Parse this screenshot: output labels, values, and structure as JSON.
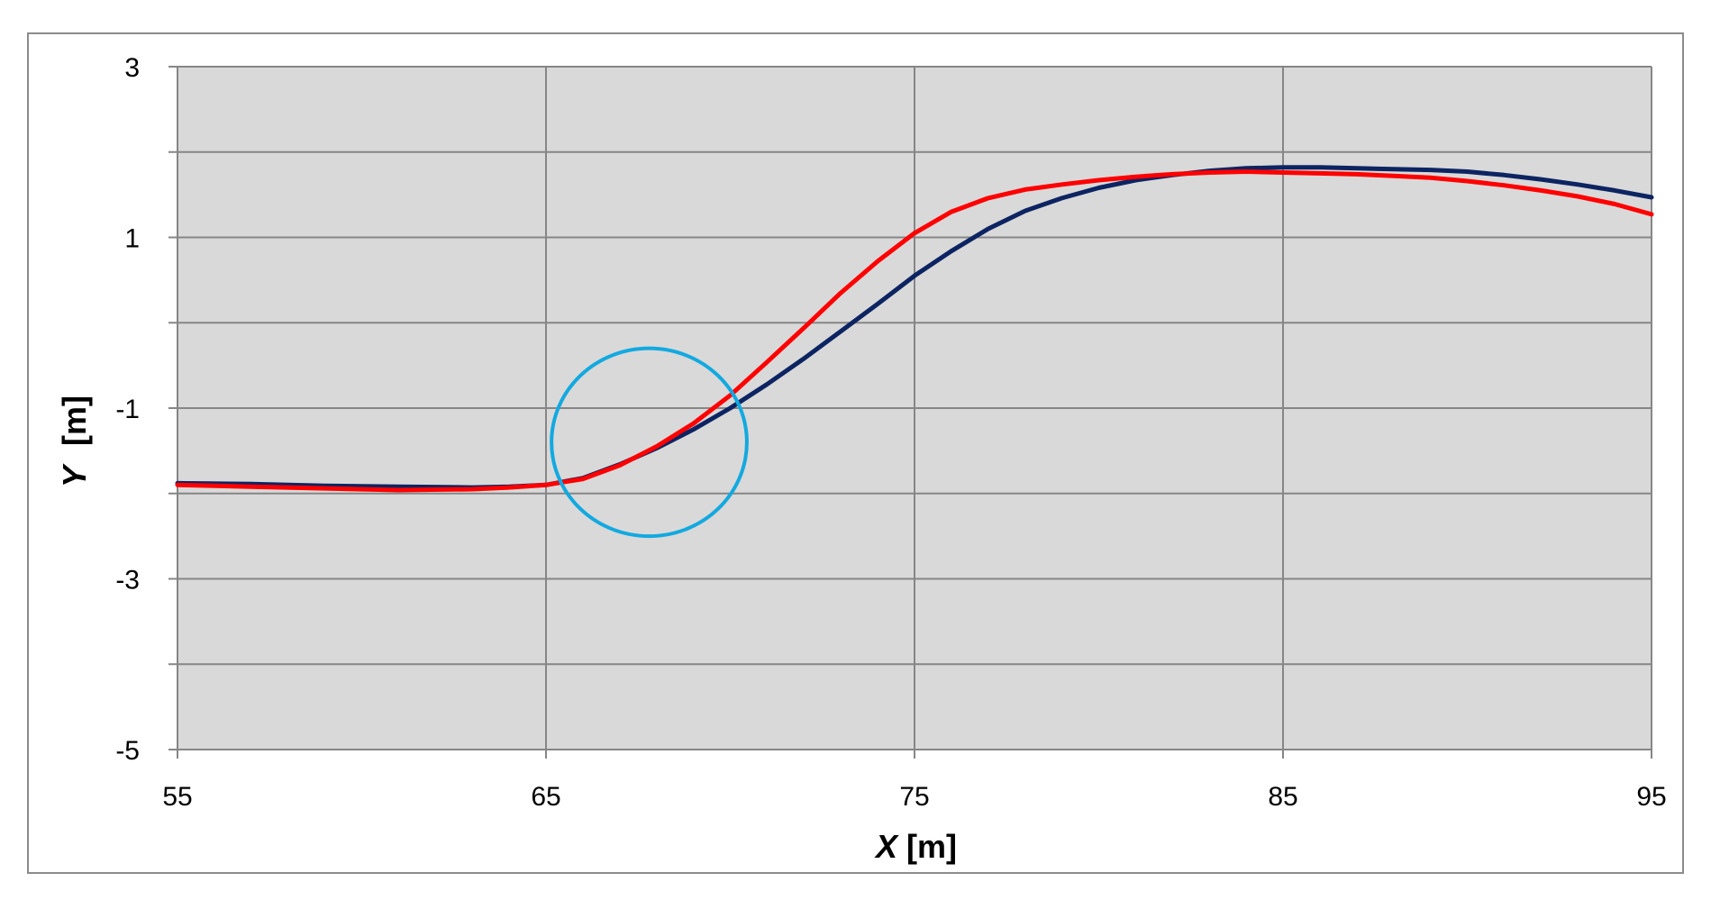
{
  "chart_data": {
    "type": "line",
    "xlabel": {
      "var": "X",
      "unit": "[m]"
    },
    "ylabel": {
      "var": "Y",
      "unit": "[m]"
    },
    "xlim": [
      55,
      95
    ],
    "ylim": [
      -5,
      3
    ],
    "x_ticks": [
      55,
      65,
      75,
      85,
      95
    ],
    "y_ticks_labeled": [
      -5,
      -3,
      -1,
      1,
      3
    ],
    "y_gridlines": [
      -5,
      -4,
      -3,
      -2,
      -1,
      0,
      1,
      2,
      3
    ],
    "grid": true,
    "plot_background": "#d9d9d9",
    "colors": {
      "series_dark": "#0d2462",
      "series_red": "#ff0000",
      "circle": "#12a9e0",
      "grid": "#868686"
    },
    "series": [
      {
        "color": "#0d2462",
        "x": [
          55,
          57,
          59,
          61,
          63,
          64,
          65,
          66,
          67,
          68,
          69,
          70,
          71,
          72,
          73,
          74,
          75,
          76,
          77,
          78,
          79,
          80,
          81,
          82,
          83,
          84,
          85,
          86,
          87,
          88,
          89,
          90,
          91,
          92,
          93,
          94,
          95
        ],
        "y": [
          -1.88,
          -1.89,
          -1.91,
          -1.92,
          -1.93,
          -1.92,
          -1.9,
          -1.82,
          -1.66,
          -1.47,
          -1.25,
          -1.0,
          -0.72,
          -0.42,
          -0.1,
          0.22,
          0.55,
          0.84,
          1.1,
          1.31,
          1.46,
          1.58,
          1.67,
          1.73,
          1.78,
          1.81,
          1.82,
          1.82,
          1.81,
          1.8,
          1.79,
          1.77,
          1.73,
          1.68,
          1.62,
          1.55,
          1.47
        ]
      },
      {
        "color": "#ff0000",
        "x": [
          55,
          57,
          59,
          61,
          63,
          64,
          65,
          66,
          67,
          68,
          69,
          70,
          71,
          72,
          73,
          74,
          75,
          76,
          77,
          78,
          79,
          80,
          81,
          82,
          83,
          84,
          85,
          86,
          87,
          88,
          89,
          90,
          91,
          92,
          93,
          94,
          95
        ],
        "y": [
          -1.9,
          -1.92,
          -1.94,
          -1.96,
          -1.95,
          -1.93,
          -1.9,
          -1.83,
          -1.67,
          -1.45,
          -1.18,
          -0.85,
          -0.46,
          -0.06,
          0.35,
          0.72,
          1.05,
          1.3,
          1.46,
          1.56,
          1.62,
          1.67,
          1.71,
          1.74,
          1.76,
          1.77,
          1.76,
          1.75,
          1.74,
          1.72,
          1.7,
          1.66,
          1.61,
          1.55,
          1.48,
          1.39,
          1.27
        ]
      }
    ],
    "annotations": [
      {
        "type": "circle",
        "cx": 67.8,
        "cy": -1.4,
        "rx": 2.65,
        "ry": 1.1,
        "color": "#12a9e0"
      }
    ]
  }
}
